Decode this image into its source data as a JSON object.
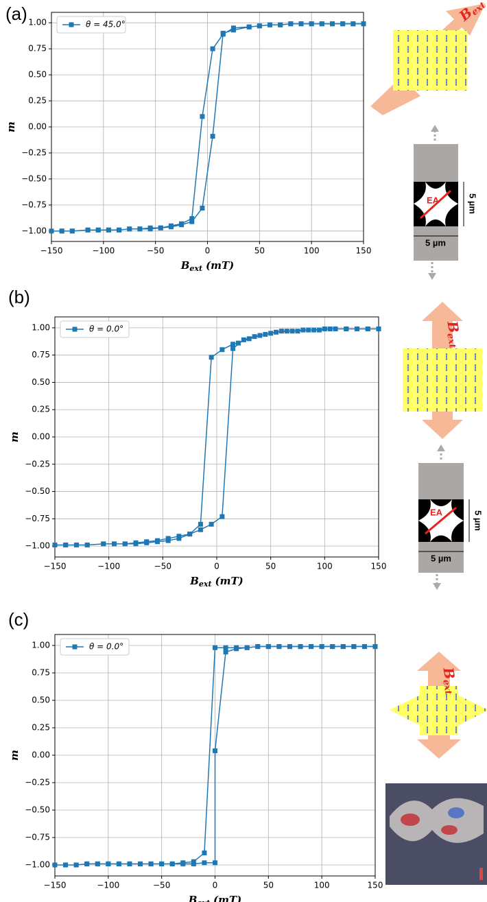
{
  "chart_data": [
    {
      "type": "line",
      "panel_label": "(a)",
      "ylabel": "m",
      "xlabel": {
        "symbol": "B",
        "subscript": "ext",
        "unit": "(mT)"
      },
      "xlim": [
        -150,
        150
      ],
      "ylim": [
        -1.1,
        1.1
      ],
      "xticks": [
        {
          "value": -150,
          "label": "−150"
        },
        {
          "value": -100,
          "label": "−100"
        },
        {
          "value": -50,
          "label": "−50"
        },
        0,
        50,
        100,
        150
      ],
      "yticks": [
        {
          "value": -1,
          "label": "−1.00"
        },
        {
          "value": -0.75,
          "label": "−0.75"
        },
        {
          "value": -0.5,
          "label": "−0.50"
        },
        {
          "value": -0.25,
          "label": "−0.25"
        },
        {
          "value": 0,
          "label": "0.00"
        },
        0.25,
        {
          "value": 0.5,
          "label": "0.50"
        },
        0.75,
        {
          "value": 1,
          "label": "1.00"
        }
      ],
      "grid": true,
      "legend": "upper left",
      "series": [
        {
          "name": "θ = 45.0°",
          "color": "#1f77b4",
          "x": [
            150,
            140,
            130,
            120,
            110,
            100,
            90,
            80,
            70,
            60,
            50,
            40,
            25,
            15,
            5,
            -5,
            -15,
            -25,
            -35,
            -45,
            -55,
            -65,
            -75,
            -85,
            -95,
            -105,
            -115,
            -130,
            -140,
            -150,
            -140,
            -130,
            -115,
            -105,
            -95,
            -85,
            -75,
            -65,
            -55,
            -45,
            -35,
            -25,
            -15,
            -5,
            5,
            15,
            25,
            40,
            50,
            60,
            70,
            80,
            90,
            100,
            110,
            120,
            130,
            140,
            150
          ],
          "values": [
            0.99,
            0.99,
            0.99,
            0.99,
            0.99,
            0.99,
            0.99,
            0.99,
            0.98,
            0.98,
            0.97,
            0.96,
            0.95,
            0.89,
            0.75,
            0.1,
            -0.88,
            -0.93,
            -0.95,
            -0.97,
            -0.97,
            -0.98,
            -0.98,
            -0.99,
            -0.99,
            -0.99,
            -0.99,
            -1.0,
            -1.0,
            -1.0,
            -1.0,
            -1.0,
            -0.99,
            -0.99,
            -0.99,
            -0.99,
            -0.98,
            -0.98,
            -0.98,
            -0.97,
            -0.96,
            -0.94,
            -0.91,
            -0.78,
            -0.09,
            0.9,
            0.93,
            0.96,
            0.97,
            0.98,
            0.98,
            0.99,
            0.99,
            0.99,
            0.99,
            0.99,
            0.99,
            0.99,
            0.99
          ]
        }
      ],
      "diagram": {
        "field": "B",
        "field_sub": "ext",
        "axis": "EA",
        "height": "5 µm",
        "width": "5 µm"
      }
    },
    {
      "type": "line",
      "panel_label": "(b)",
      "ylabel": "m",
      "xlabel": {
        "symbol": "B",
        "subscript": "ext",
        "unit": "(mT)"
      },
      "xlim": [
        -150,
        150
      ],
      "ylim": [
        -1.1,
        1.1
      ],
      "xticks": [
        {
          "value": -150,
          "label": "−150"
        },
        {
          "value": -100,
          "label": "−100"
        },
        {
          "value": -50,
          "label": "−50"
        },
        0,
        50,
        100,
        150
      ],
      "yticks": [
        {
          "value": -1,
          "label": "−1.00"
        },
        {
          "value": -0.75,
          "label": "−0.75"
        },
        {
          "value": -0.5,
          "label": "−0.50"
        },
        {
          "value": -0.25,
          "label": "−0.25"
        },
        {
          "value": 0,
          "label": "0.00"
        },
        0.25,
        {
          "value": 0.5,
          "label": "0.50"
        },
        0.75,
        {
          "value": 1,
          "label": "1.00"
        }
      ],
      "grid": true,
      "legend": "upper left",
      "series": [
        {
          "name": "θ = 0.0°",
          "color": "#1f77b4",
          "x": [
            150,
            140,
            130,
            120,
            110,
            100,
            90,
            80,
            70,
            60,
            50,
            40,
            30,
            20,
            15,
            5,
            -5,
            -15,
            -25,
            -35,
            -45,
            -55,
            -65,
            -75,
            -85,
            -95,
            -105,
            -120,
            -130,
            -140,
            -150,
            -140,
            -130,
            -120,
            -105,
            -95,
            -85,
            -75,
            -65,
            -55,
            -45,
            -35,
            -25,
            -15,
            -5,
            5,
            15,
            25,
            35,
            45,
            55,
            65,
            75,
            85,
            95,
            105,
            120,
            130,
            140,
            150
          ],
          "values": [
            0.99,
            0.99,
            0.99,
            0.99,
            0.99,
            0.99,
            0.98,
            0.98,
            0.97,
            0.97,
            0.95,
            0.93,
            0.9,
            0.86,
            0.85,
            0.8,
            0.73,
            -0.8,
            -0.89,
            -0.93,
            -0.95,
            -0.96,
            -0.97,
            -0.98,
            -0.98,
            -0.98,
            -0.98,
            -0.99,
            -0.99,
            -0.99,
            -0.99,
            -0.99,
            -0.99,
            -0.99,
            -0.98,
            -0.98,
            -0.98,
            -0.97,
            -0.96,
            -0.95,
            -0.93,
            -0.91,
            -0.89,
            -0.85,
            -0.8,
            -0.73,
            0.81,
            0.89,
            0.92,
            0.94,
            0.96,
            0.97,
            0.97,
            0.98,
            0.98,
            0.99,
            0.99,
            0.99,
            0.99,
            0.99
          ]
        }
      ],
      "diagram": {
        "field": "B",
        "field_sub": "ext",
        "axis": "EA",
        "height": "5 µm",
        "width": "5 µm"
      }
    },
    {
      "type": "line",
      "panel_label": "(c)",
      "ylabel": "m",
      "xlabel": {
        "symbol": "B",
        "subscript": "ext",
        "unit": "(mT)"
      },
      "xlim": [
        -150,
        150
      ],
      "ylim": [
        -1.1,
        1.1
      ],
      "xticks": [
        {
          "value": -150,
          "label": "−150"
        },
        {
          "value": -100,
          "label": "−100"
        },
        {
          "value": -50,
          "label": "−50"
        },
        0,
        50,
        100,
        150
      ],
      "yticks": [
        {
          "value": -1,
          "label": "−1.00"
        },
        {
          "value": -0.75,
          "label": "−0.75"
        },
        {
          "value": -0.5,
          "label": "−0.50"
        },
        {
          "value": -0.25,
          "label": "−0.25"
        },
        {
          "value": 0,
          "label": "0.00"
        },
        0.25,
        {
          "value": 0.5,
          "label": "0.50"
        },
        0.75,
        {
          "value": 1,
          "label": "1.00"
        }
      ],
      "grid": true,
      "legend": "upper left",
      "series": [
        {
          "name": "θ = 0.0°",
          "color": "#1f77b4",
          "x": [
            150,
            140,
            130,
            120,
            110,
            100,
            90,
            80,
            70,
            60,
            50,
            40,
            30,
            20,
            10,
            0,
            -10,
            -20,
            -30,
            -40,
            -50,
            -60,
            -70,
            -80,
            -90,
            -100,
            -110,
            -120,
            -130,
            -140,
            -150,
            -140,
            -130,
            -120,
            -110,
            -100,
            -90,
            -80,
            -70,
            -60,
            -50,
            -40,
            -30,
            -20,
            -10,
            0,
            0,
            10,
            20,
            30,
            40,
            50,
            60,
            70,
            80,
            90,
            100,
            110,
            120,
            130,
            140,
            150
          ],
          "values": [
            0.99,
            0.99,
            0.99,
            0.99,
            0.99,
            0.99,
            0.99,
            0.99,
            0.99,
            0.99,
            0.99,
            0.99,
            0.98,
            0.98,
            0.98,
            0.98,
            -0.89,
            -0.97,
            -0.98,
            -0.99,
            -0.99,
            -0.99,
            -0.99,
            -0.99,
            -0.99,
            -0.99,
            -0.99,
            -0.99,
            -1.0,
            -1.0,
            -1.0,
            -1.0,
            -1.0,
            -0.99,
            -0.99,
            -0.99,
            -0.99,
            -0.99,
            -0.99,
            -0.99,
            -0.99,
            -0.99,
            -0.99,
            -0.99,
            -0.98,
            -0.98,
            0.04,
            0.94,
            0.97,
            0.98,
            0.99,
            0.99,
            0.99,
            0.99,
            0.99,
            0.99,
            0.99,
            0.99,
            0.99,
            0.99,
            0.99,
            0.99
          ]
        }
      ],
      "diagram": {
        "field": "B",
        "field_sub": "ext"
      }
    }
  ]
}
